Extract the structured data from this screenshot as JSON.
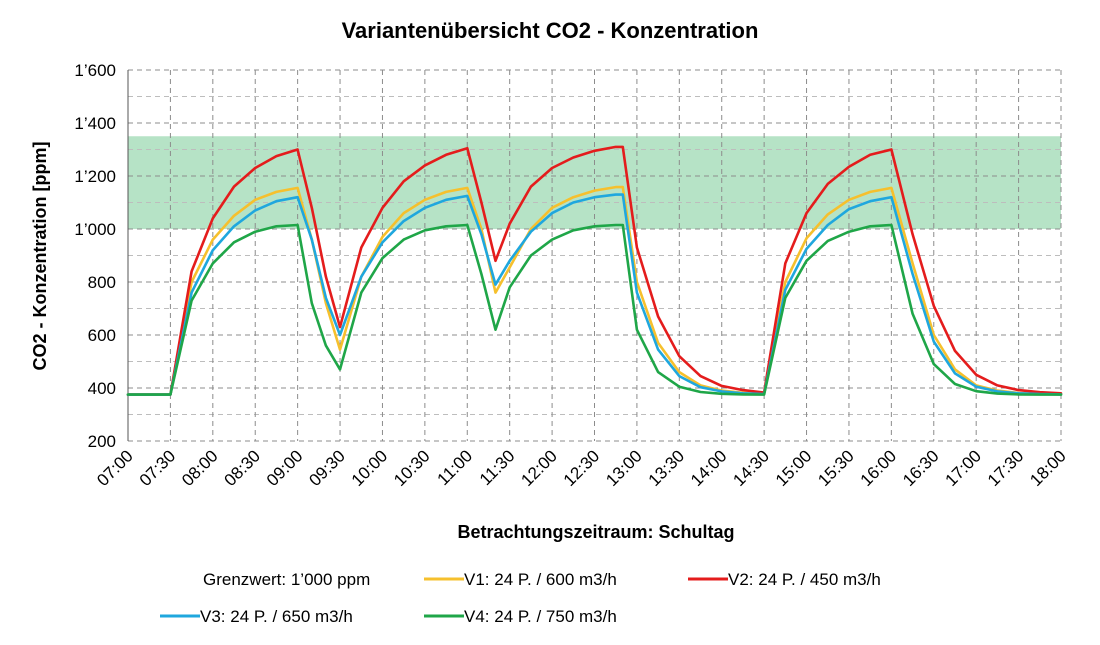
{
  "chart_data": {
    "type": "line",
    "title": "Variantenübersicht CO2 - Konzentration",
    "xlabel": "Betrachtungszeitraum: Schultag",
    "ylabel": "CO2 - Konzentration [ppm]",
    "ylim": [
      200,
      1600
    ],
    "yticks": [
      {
        "value": 200,
        "label": "200"
      },
      {
        "value": 400,
        "label": "400"
      },
      {
        "value": 600,
        "label": "600"
      },
      {
        "value": 800,
        "label": "800"
      },
      {
        "value": 1000,
        "label": "1’000"
      },
      {
        "value": 1200,
        "label": "1’200"
      },
      {
        "value": 1400,
        "label": "1’400"
      },
      {
        "value": 1600,
        "label": "1’600"
      }
    ],
    "xticks": [
      "07:00",
      "07:30",
      "08:00",
      "08:30",
      "09:00",
      "09:30",
      "10:00",
      "10:30",
      "11:00",
      "11:30",
      "12:00",
      "12:30",
      "13:00",
      "13:30",
      "14:00",
      "14:30",
      "15:00",
      "15:30",
      "16:00",
      "16:30",
      "17:00",
      "17:30",
      "18:00"
    ],
    "grid": true,
    "legend_position": "bottom",
    "band": {
      "name": "Grenzwert: 1’000 ppm",
      "from": 1000,
      "to": 1350,
      "color": "#b6e3c6"
    },
    "series": [
      {
        "name": "V1: 24 P. / 600 m3/h",
        "color": "#f6c02d",
        "points": [
          [
            "07:00",
            375
          ],
          [
            "07:30",
            375
          ],
          [
            "07:45",
            800
          ],
          [
            "08:00",
            960
          ],
          [
            "08:15",
            1050
          ],
          [
            "08:30",
            1110
          ],
          [
            "08:45",
            1140
          ],
          [
            "09:00",
            1155
          ],
          [
            "09:10",
            960
          ],
          [
            "09:20",
            720
          ],
          [
            "09:30",
            545
          ],
          [
            "09:45",
            820
          ],
          [
            "10:00",
            970
          ],
          [
            "10:15",
            1060
          ],
          [
            "10:30",
            1110
          ],
          [
            "10:45",
            1140
          ],
          [
            "11:00",
            1155
          ],
          [
            "11:10",
            1000
          ],
          [
            "11:20",
            760
          ],
          [
            "11:30",
            855
          ],
          [
            "11:45",
            1000
          ],
          [
            "12:00",
            1080
          ],
          [
            "12:15",
            1120
          ],
          [
            "12:30",
            1145
          ],
          [
            "12:45",
            1158
          ],
          [
            "12:50",
            1158
          ],
          [
            "13:00",
            800
          ],
          [
            "13:15",
            570
          ],
          [
            "13:30",
            460
          ],
          [
            "13:45",
            410
          ],
          [
            "14:00",
            390
          ],
          [
            "14:15",
            382
          ],
          [
            "14:30",
            378
          ],
          [
            "14:45",
            800
          ],
          [
            "15:00",
            965
          ],
          [
            "15:15",
            1055
          ],
          [
            "15:30",
            1110
          ],
          [
            "15:45",
            1140
          ],
          [
            "16:00",
            1155
          ],
          [
            "16:15",
            870
          ],
          [
            "16:30",
            600
          ],
          [
            "16:45",
            470
          ],
          [
            "17:00",
            410
          ],
          [
            "17:15",
            390
          ],
          [
            "17:30",
            381
          ],
          [
            "17:45",
            378
          ],
          [
            "18:00",
            377
          ]
        ]
      },
      {
        "name": "V2: 24 P. / 450 m3/h",
        "color": "#e41c1c",
        "points": [
          [
            "07:00",
            375
          ],
          [
            "07:30",
            375
          ],
          [
            "07:45",
            840
          ],
          [
            "08:00",
            1040
          ],
          [
            "08:15",
            1160
          ],
          [
            "08:30",
            1230
          ],
          [
            "08:45",
            1275
          ],
          [
            "09:00",
            1300
          ],
          [
            "09:10",
            1080
          ],
          [
            "09:20",
            820
          ],
          [
            "09:30",
            630
          ],
          [
            "09:45",
            930
          ],
          [
            "10:00",
            1080
          ],
          [
            "10:15",
            1180
          ],
          [
            "10:30",
            1240
          ],
          [
            "10:45",
            1280
          ],
          [
            "11:00",
            1305
          ],
          [
            "11:10",
            1100
          ],
          [
            "11:20",
            880
          ],
          [
            "11:30",
            1020
          ],
          [
            "11:45",
            1160
          ],
          [
            "12:00",
            1230
          ],
          [
            "12:15",
            1270
          ],
          [
            "12:30",
            1295
          ],
          [
            "12:45",
            1310
          ],
          [
            "12:50",
            1310
          ],
          [
            "13:00",
            930
          ],
          [
            "13:15",
            670
          ],
          [
            "13:30",
            520
          ],
          [
            "13:45",
            445
          ],
          [
            "14:00",
            408
          ],
          [
            "14:15",
            392
          ],
          [
            "14:30",
            383
          ],
          [
            "14:45",
            870
          ],
          [
            "15:00",
            1060
          ],
          [
            "15:15",
            1170
          ],
          [
            "15:30",
            1235
          ],
          [
            "15:45",
            1280
          ],
          [
            "16:00",
            1300
          ],
          [
            "16:15",
            980
          ],
          [
            "16:30",
            710
          ],
          [
            "16:45",
            540
          ],
          [
            "17:00",
            450
          ],
          [
            "17:15",
            410
          ],
          [
            "17:30",
            392
          ],
          [
            "17:45",
            384
          ],
          [
            "18:00",
            380
          ]
        ]
      },
      {
        "name": "V3: 24 P. / 650 m3/h",
        "color": "#1fa7de",
        "points": [
          [
            "07:00",
            375
          ],
          [
            "07:30",
            375
          ],
          [
            "07:45",
            760
          ],
          [
            "08:00",
            920
          ],
          [
            "08:15",
            1010
          ],
          [
            "08:30",
            1070
          ],
          [
            "08:45",
            1105
          ],
          [
            "09:00",
            1120
          ],
          [
            "09:10",
            960
          ],
          [
            "09:20",
            740
          ],
          [
            "09:30",
            600
          ],
          [
            "09:45",
            820
          ],
          [
            "10:00",
            950
          ],
          [
            "10:15",
            1030
          ],
          [
            "10:30",
            1080
          ],
          [
            "10:45",
            1110
          ],
          [
            "11:00",
            1125
          ],
          [
            "11:10",
            980
          ],
          [
            "11:20",
            790
          ],
          [
            "11:30",
            880
          ],
          [
            "11:45",
            990
          ],
          [
            "12:00",
            1060
          ],
          [
            "12:15",
            1100
          ],
          [
            "12:30",
            1120
          ],
          [
            "12:45",
            1130
          ],
          [
            "12:50",
            1130
          ],
          [
            "13:00",
            760
          ],
          [
            "13:15",
            545
          ],
          [
            "13:30",
            445
          ],
          [
            "13:45",
            403
          ],
          [
            "14:00",
            387
          ],
          [
            "14:15",
            380
          ],
          [
            "14:30",
            377
          ],
          [
            "14:45",
            770
          ],
          [
            "15:00",
            925
          ],
          [
            "15:15",
            1015
          ],
          [
            "15:30",
            1075
          ],
          [
            "15:45",
            1105
          ],
          [
            "16:00",
            1120
          ],
          [
            "16:15",
            830
          ],
          [
            "16:30",
            575
          ],
          [
            "16:45",
            455
          ],
          [
            "17:00",
            405
          ],
          [
            "17:15",
            387
          ],
          [
            "17:30",
            380
          ],
          [
            "17:45",
            377
          ],
          [
            "18:00",
            376
          ]
        ]
      },
      {
        "name": "V4: 24 P. / 750 m3/h",
        "color": "#1fa648",
        "points": [
          [
            "07:00",
            375
          ],
          [
            "07:30",
            375
          ],
          [
            "07:45",
            730
          ],
          [
            "08:00",
            870
          ],
          [
            "08:15",
            950
          ],
          [
            "08:30",
            990
          ],
          [
            "08:45",
            1010
          ],
          [
            "09:00",
            1015
          ],
          [
            "09:10",
            720
          ],
          [
            "09:20",
            560
          ],
          [
            "09:30",
            470
          ],
          [
            "09:45",
            760
          ],
          [
            "10:00",
            890
          ],
          [
            "10:15",
            960
          ],
          [
            "10:30",
            995
          ],
          [
            "10:45",
            1010
          ],
          [
            "11:00",
            1015
          ],
          [
            "11:10",
            830
          ],
          [
            "11:20",
            620
          ],
          [
            "11:30",
            780
          ],
          [
            "11:45",
            900
          ],
          [
            "12:00",
            960
          ],
          [
            "12:15",
            995
          ],
          [
            "12:30",
            1010
          ],
          [
            "12:45",
            1015
          ],
          [
            "12:50",
            1015
          ],
          [
            "13:00",
            620
          ],
          [
            "13:15",
            460
          ],
          [
            "13:30",
            405
          ],
          [
            "13:45",
            385
          ],
          [
            "14:00",
            378
          ],
          [
            "14:15",
            376
          ],
          [
            "14:30",
            375
          ],
          [
            "14:45",
            740
          ],
          [
            "15:00",
            880
          ],
          [
            "15:15",
            955
          ],
          [
            "15:30",
            990
          ],
          [
            "15:45",
            1010
          ],
          [
            "16:00",
            1015
          ],
          [
            "16:15",
            680
          ],
          [
            "16:30",
            490
          ],
          [
            "16:45",
            415
          ],
          [
            "17:00",
            388
          ],
          [
            "17:15",
            379
          ],
          [
            "17:30",
            376
          ],
          [
            "17:45",
            375
          ],
          [
            "18:00",
            375
          ]
        ]
      }
    ]
  }
}
